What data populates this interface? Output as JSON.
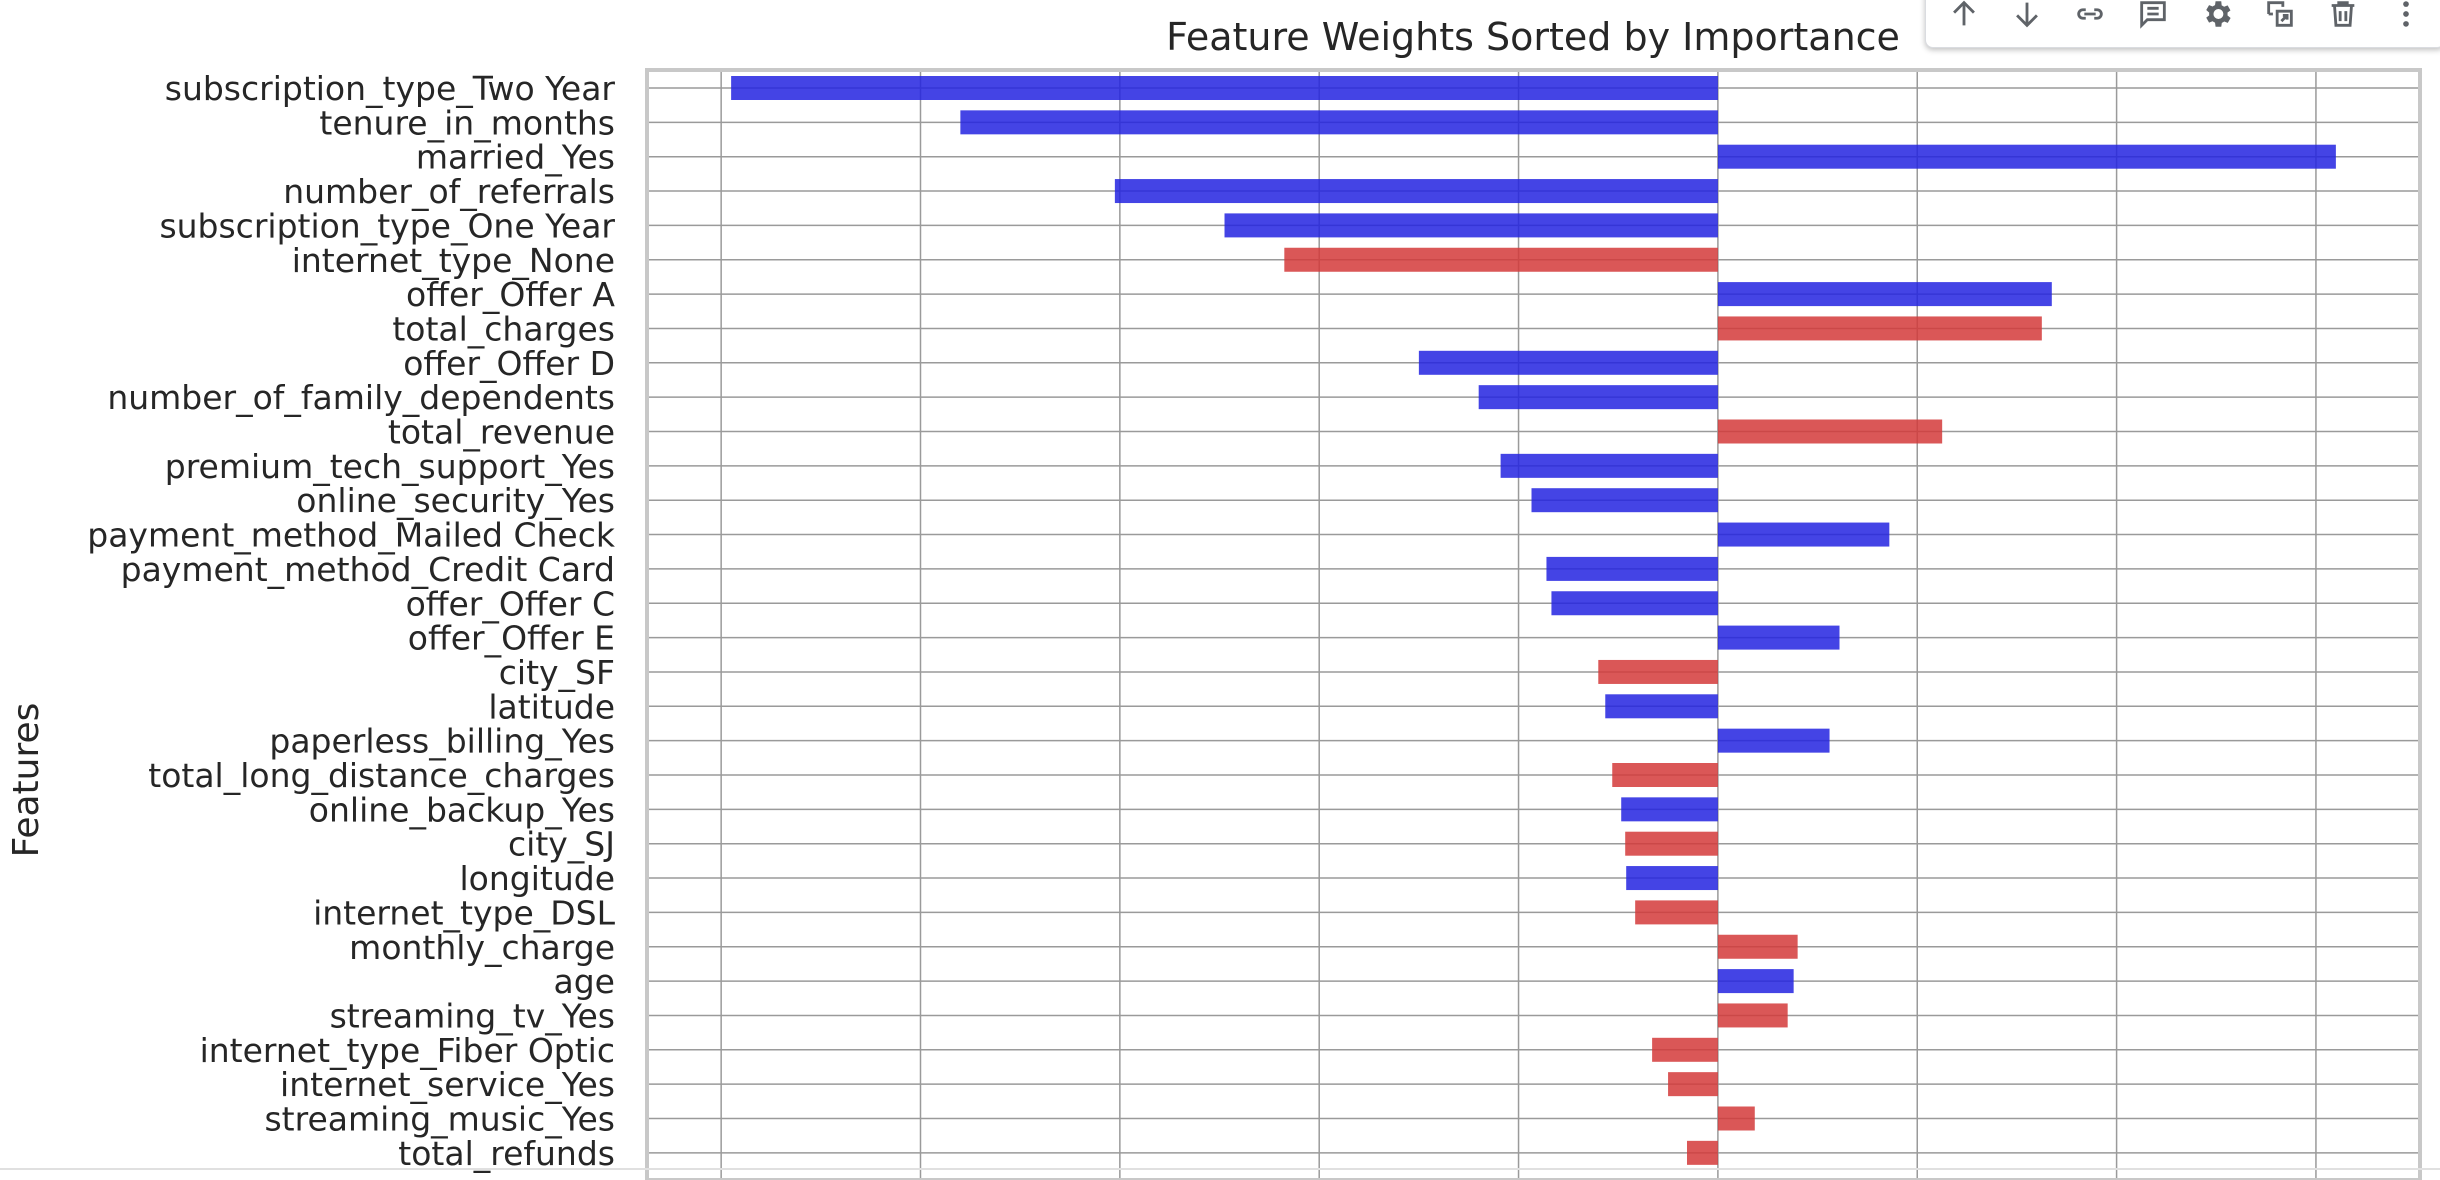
{
  "toolbar": {
    "icons": [
      "arrow-up-icon",
      "arrow-down-icon",
      "link-icon",
      "comment-icon",
      "gear-icon",
      "mirror-cell-icon",
      "trash-icon",
      "more-vert-icon"
    ]
  },
  "colors": {
    "positive": "#d33a3a",
    "negative": "#2323e0",
    "grid": "#9a9a9a",
    "frame": "#c8c8c8"
  },
  "chart_data": {
    "type": "bar",
    "orientation": "horizontal",
    "title": "Feature Weights Sorted by Importance",
    "ylabel": "Features",
    "xlabel": "",
    "grid": true,
    "categories": [
      "subscription_type_Two Year",
      "tenure_in_months",
      "married_Yes",
      "number_of_referrals",
      "subscription_type_One Year",
      "internet_type_None",
      "offer_Offer A",
      "total_charges",
      "offer_Offer D",
      "number_of_family_dependents",
      "total_revenue",
      "premium_tech_support_Yes",
      "online_security_Yes",
      "payment_method_Mailed Check",
      "payment_method_Credit Card",
      "offer_Offer C",
      "offer_Offer E",
      "city_SF",
      "latitude",
      "paperless_billing_Yes",
      "total_long_distance_charges",
      "online_backup_Yes",
      "city_SJ",
      "longitude",
      "internet_type_DSL",
      "monthly_charge",
      "age",
      "streaming_tv_Yes",
      "internet_type_Fiber Optic",
      "internet_service_Yes",
      "streaming_music_Yes",
      "total_refunds"
    ],
    "values": [
      -0.99,
      -0.76,
      0.62,
      -0.605,
      -0.495,
      -0.435,
      0.335,
      0.325,
      -0.3,
      -0.24,
      0.225,
      -0.218,
      -0.187,
      0.172,
      -0.172,
      -0.167,
      0.122,
      -0.12,
      -0.113,
      0.112,
      -0.106,
      -0.097,
      -0.093,
      -0.092,
      -0.083,
      0.08,
      0.076,
      0.07,
      -0.066,
      -0.05,
      0.037,
      -0.031
    ],
    "bar_colors": [
      "blue",
      "blue",
      "blue",
      "blue",
      "blue",
      "red",
      "blue",
      "red",
      "blue",
      "blue",
      "red",
      "blue",
      "blue",
      "blue",
      "blue",
      "blue",
      "blue",
      "red",
      "blue",
      "blue",
      "red",
      "blue",
      "red",
      "blue",
      "red",
      "red",
      "blue",
      "red",
      "red",
      "red",
      "red",
      "red"
    ],
    "xlim": [
      -1.0744,
      0.7044
    ]
  }
}
